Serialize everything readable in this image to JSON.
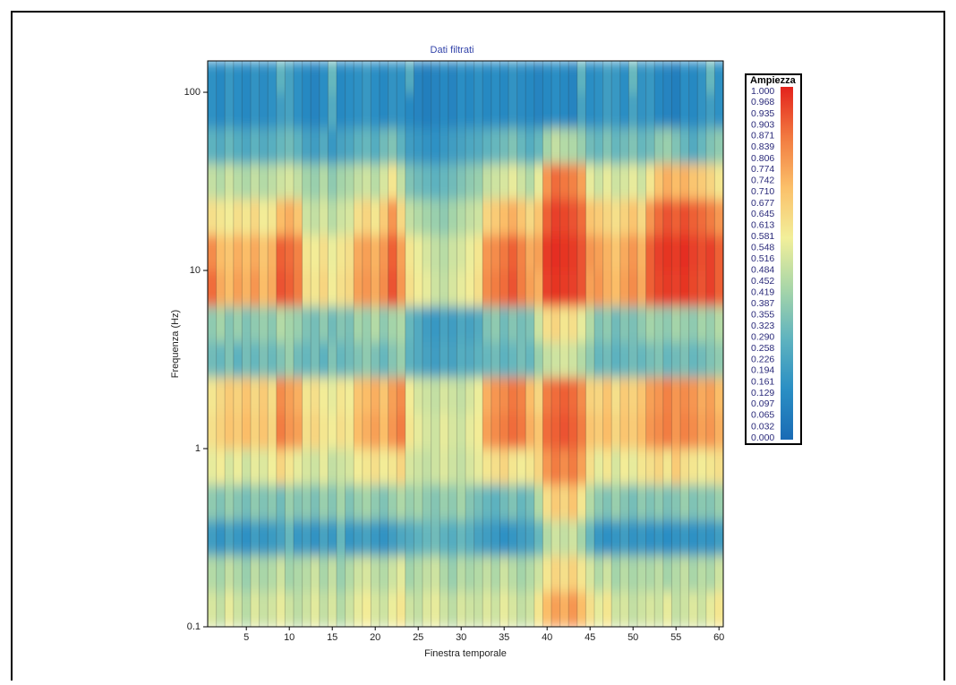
{
  "chart_data": {
    "type": "heatmap",
    "title": "Dati filtrati",
    "x_label": "Finestra temporale",
    "y_label": "Frequenza (Hz)",
    "colorbar_title": "Ampiezza",
    "xlim": [
      0.5,
      60.5
    ],
    "ylim": [
      0.1,
      150
    ],
    "ylog": true,
    "xticks": [
      5,
      10,
      15,
      20,
      25,
      30,
      35,
      40,
      45,
      50,
      55,
      60
    ],
    "yticks": [
      0.1,
      1,
      10,
      100
    ],
    "zlim": [
      0,
      1
    ],
    "colorscale": [
      "#1a6bb5",
      "#2a8fc4",
      "#5fb3bf",
      "#a8d6a8",
      "#f2ef9a",
      "#fbc06a",
      "#f27a40",
      "#e3221c"
    ],
    "colorbar_ticks": [
      {
        "value": 1,
        "label": "1.000"
      },
      0.968,
      0.935,
      0.903,
      0.871,
      0.839,
      0.806,
      0.774,
      0.742,
      {
        "value": 0.71,
        "label": "0.710"
      },
      0.677,
      0.645,
      0.613,
      0.581,
      0.548,
      0.516,
      0.484,
      0.452,
      0.419,
      0.387,
      0.355,
      0.323,
      {
        "value": 0.29,
        "label": "0.290"
      },
      0.258,
      0.226,
      0.194,
      0.161,
      0.129,
      0.097,
      0.065,
      0.032,
      {
        "value": 0,
        "label": "0.000"
      }
    ],
    "x": [
      1,
      2,
      3,
      4,
      5,
      6,
      7,
      8,
      9,
      10,
      11,
      12,
      13,
      14,
      15,
      16,
      17,
      18,
      19,
      20,
      21,
      22,
      23,
      24,
      25,
      26,
      27,
      28,
      29,
      30,
      31,
      32,
      33,
      34,
      35,
      36,
      37,
      38,
      39,
      40,
      41,
      42,
      43,
      44,
      45,
      46,
      47,
      48,
      49,
      50,
      51,
      52,
      53,
      54,
      55,
      56,
      57,
      58,
      59,
      60
    ],
    "y_bins": [
      0.1,
      0.158,
      0.251,
      0.398,
      0.631,
      1,
      1.585,
      2.512,
      3.981,
      6.31,
      10,
      15.85,
      25.12,
      39.81,
      63.1,
      100,
      150
    ],
    "z": [
      [
        0.52,
        0.48,
        0.55,
        0.5,
        0.46,
        0.53,
        0.49,
        0.51,
        0.55,
        0.5,
        0.47,
        0.5,
        0.54,
        0.48,
        0.52,
        0.45,
        0.5,
        0.55,
        0.58,
        0.52,
        0.5,
        0.56,
        0.6,
        0.5,
        0.48,
        0.53,
        0.55,
        0.5,
        0.47,
        0.52,
        0.5,
        0.49,
        0.53,
        0.5,
        0.55,
        0.52,
        0.48,
        0.5,
        0.6,
        0.72,
        0.78,
        0.75,
        0.8,
        0.72,
        0.62,
        0.55,
        0.6,
        0.5,
        0.52,
        0.48,
        0.5,
        0.52,
        0.5,
        0.55,
        0.48,
        0.5,
        0.53,
        0.5,
        0.55,
        0.6
      ],
      [
        0.45,
        0.42,
        0.48,
        0.44,
        0.4,
        0.47,
        0.43,
        0.45,
        0.5,
        0.42,
        0.44,
        0.46,
        0.5,
        0.43,
        0.48,
        0.4,
        0.45,
        0.5,
        0.52,
        0.47,
        0.45,
        0.5,
        0.54,
        0.42,
        0.45,
        0.48,
        0.5,
        0.44,
        0.4,
        0.46,
        0.43,
        0.45,
        0.48,
        0.44,
        0.5,
        0.46,
        0.42,
        0.45,
        0.5,
        0.6,
        0.65,
        0.62,
        0.66,
        0.6,
        0.52,
        0.45,
        0.5,
        0.42,
        0.46,
        0.43,
        0.45,
        0.44,
        0.47,
        0.42,
        0.45,
        0.48,
        0.43,
        0.46,
        0.44,
        0.5
      ],
      [
        0.2,
        0.16,
        0.22,
        0.18,
        0.15,
        0.2,
        0.17,
        0.19,
        0.22,
        0.3,
        0.18,
        0.2,
        0.16,
        0.22,
        0.18,
        0.3,
        0.17,
        0.2,
        0.22,
        0.18,
        0.16,
        0.2,
        0.24,
        0.25,
        0.28,
        0.3,
        0.32,
        0.28,
        0.26,
        0.3,
        0.27,
        0.22,
        0.2,
        0.18,
        0.15,
        0.17,
        0.2,
        0.22,
        0.3,
        0.45,
        0.5,
        0.48,
        0.5,
        0.42,
        0.3,
        0.18,
        0.15,
        0.17,
        0.2,
        0.16,
        0.18,
        0.15,
        0.17,
        0.14,
        0.16,
        0.18,
        0.15,
        0.17,
        0.16,
        0.2
      ],
      [
        0.38,
        0.35,
        0.4,
        0.36,
        0.33,
        0.38,
        0.35,
        0.37,
        0.32,
        0.4,
        0.36,
        0.38,
        0.34,
        0.4,
        0.36,
        0.42,
        0.35,
        0.4,
        0.42,
        0.38,
        0.35,
        0.4,
        0.44,
        0.4,
        0.42,
        0.38,
        0.36,
        0.4,
        0.38,
        0.42,
        0.36,
        0.33,
        0.3,
        0.28,
        0.32,
        0.35,
        0.3,
        0.33,
        0.45,
        0.62,
        0.68,
        0.65,
        0.7,
        0.6,
        0.45,
        0.38,
        0.35,
        0.4,
        0.36,
        0.33,
        0.38,
        0.35,
        0.38,
        0.34,
        0.36,
        0.4,
        0.35,
        0.37,
        0.36,
        0.4
      ],
      [
        0.55,
        0.58,
        0.52,
        0.56,
        0.5,
        0.55,
        0.53,
        0.57,
        0.65,
        0.6,
        0.55,
        0.52,
        0.5,
        0.55,
        0.48,
        0.5,
        0.52,
        0.58,
        0.6,
        0.62,
        0.58,
        0.6,
        0.65,
        0.52,
        0.5,
        0.48,
        0.5,
        0.53,
        0.5,
        0.48,
        0.52,
        0.55,
        0.6,
        0.62,
        0.65,
        0.6,
        0.58,
        0.6,
        0.65,
        0.8,
        0.85,
        0.82,
        0.85,
        0.78,
        0.62,
        0.55,
        0.6,
        0.52,
        0.58,
        0.55,
        0.6,
        0.62,
        0.65,
        0.6,
        0.68,
        0.62,
        0.6,
        0.58,
        0.6,
        0.62
      ],
      [
        0.62,
        0.66,
        0.7,
        0.68,
        0.72,
        0.66,
        0.7,
        0.65,
        0.85,
        0.8,
        0.78,
        0.62,
        0.65,
        0.6,
        0.58,
        0.62,
        0.6,
        0.72,
        0.75,
        0.78,
        0.72,
        0.8,
        0.85,
        0.6,
        0.55,
        0.52,
        0.5,
        0.55,
        0.52,
        0.5,
        0.55,
        0.58,
        0.78,
        0.82,
        0.85,
        0.88,
        0.86,
        0.75,
        0.7,
        0.88,
        0.9,
        0.92,
        0.9,
        0.85,
        0.7,
        0.68,
        0.72,
        0.65,
        0.7,
        0.68,
        0.72,
        0.8,
        0.82,
        0.85,
        0.8,
        0.84,
        0.82,
        0.78,
        0.8,
        0.75
      ],
      [
        0.6,
        0.64,
        0.68,
        0.66,
        0.7,
        0.64,
        0.68,
        0.63,
        0.82,
        0.78,
        0.75,
        0.6,
        0.62,
        0.58,
        0.55,
        0.6,
        0.58,
        0.7,
        0.72,
        0.75,
        0.7,
        0.78,
        0.82,
        0.58,
        0.52,
        0.5,
        0.48,
        0.52,
        0.5,
        0.48,
        0.52,
        0.56,
        0.75,
        0.8,
        0.82,
        0.86,
        0.84,
        0.72,
        0.65,
        0.85,
        0.88,
        0.9,
        0.88,
        0.82,
        0.66,
        0.65,
        0.7,
        0.62,
        0.68,
        0.66,
        0.7,
        0.78,
        0.8,
        0.84,
        0.8,
        0.82,
        0.8,
        0.76,
        0.78,
        0.72
      ],
      [
        0.32,
        0.3,
        0.35,
        0.28,
        0.33,
        0.3,
        0.34,
        0.31,
        0.35,
        0.4,
        0.32,
        0.3,
        0.33,
        0.28,
        0.35,
        0.3,
        0.32,
        0.35,
        0.38,
        0.34,
        0.3,
        0.36,
        0.4,
        0.28,
        0.25,
        0.22,
        0.2,
        0.24,
        0.22,
        0.26,
        0.25,
        0.28,
        0.3,
        0.32,
        0.28,
        0.3,
        0.33,
        0.3,
        0.4,
        0.48,
        0.5,
        0.52,
        0.5,
        0.45,
        0.38,
        0.3,
        0.32,
        0.28,
        0.3,
        0.32,
        0.3,
        0.33,
        0.35,
        0.3,
        0.32,
        0.34,
        0.3,
        0.32,
        0.35,
        0.38
      ],
      [
        0.38,
        0.42,
        0.36,
        0.4,
        0.35,
        0.38,
        0.4,
        0.37,
        0.45,
        0.42,
        0.4,
        0.35,
        0.33,
        0.38,
        0.32,
        0.36,
        0.34,
        0.42,
        0.4,
        0.45,
        0.38,
        0.42,
        0.44,
        0.3,
        0.25,
        0.2,
        0.18,
        0.22,
        0.2,
        0.24,
        0.22,
        0.25,
        0.35,
        0.38,
        0.32,
        0.36,
        0.33,
        0.35,
        0.5,
        0.62,
        0.65,
        0.6,
        0.62,
        0.55,
        0.45,
        0.35,
        0.38,
        0.32,
        0.36,
        0.34,
        0.38,
        0.42,
        0.4,
        0.38,
        0.42,
        0.4,
        0.38,
        0.42,
        0.4,
        0.45
      ],
      [
        0.88,
        0.76,
        0.72,
        0.78,
        0.74,
        0.8,
        0.72,
        0.76,
        0.92,
        0.9,
        0.85,
        0.62,
        0.6,
        0.65,
        0.58,
        0.62,
        0.64,
        0.78,
        0.8,
        0.76,
        0.82,
        0.92,
        0.8,
        0.62,
        0.58,
        0.55,
        0.5,
        0.48,
        0.52,
        0.55,
        0.58,
        0.62,
        0.82,
        0.85,
        0.88,
        0.92,
        0.85,
        0.78,
        0.75,
        0.95,
        0.97,
        0.96,
        0.95,
        0.92,
        0.78,
        0.8,
        0.75,
        0.72,
        0.78,
        0.82,
        0.76,
        0.9,
        0.94,
        0.96,
        0.95,
        0.97,
        0.94,
        0.92,
        0.95,
        0.9
      ],
      [
        0.82,
        0.72,
        0.7,
        0.75,
        0.72,
        0.76,
        0.7,
        0.74,
        0.9,
        0.88,
        0.84,
        0.6,
        0.58,
        0.62,
        0.56,
        0.6,
        0.62,
        0.76,
        0.78,
        0.74,
        0.8,
        0.9,
        0.78,
        0.6,
        0.56,
        0.52,
        0.48,
        0.46,
        0.5,
        0.52,
        0.56,
        0.6,
        0.8,
        0.82,
        0.86,
        0.9,
        0.84,
        0.76,
        0.78,
        0.96,
        0.98,
        0.97,
        0.96,
        0.92,
        0.8,
        0.78,
        0.74,
        0.7,
        0.76,
        0.8,
        0.74,
        0.9,
        0.95,
        0.97,
        0.96,
        0.98,
        0.95,
        0.93,
        0.95,
        0.9
      ],
      [
        0.62,
        0.6,
        0.58,
        0.62,
        0.6,
        0.64,
        0.58,
        0.6,
        0.72,
        0.75,
        0.7,
        0.5,
        0.48,
        0.52,
        0.46,
        0.5,
        0.52,
        0.62,
        0.65,
        0.6,
        0.68,
        0.8,
        0.64,
        0.48,
        0.45,
        0.42,
        0.4,
        0.38,
        0.42,
        0.45,
        0.48,
        0.5,
        0.65,
        0.68,
        0.72,
        0.75,
        0.7,
        0.64,
        0.7,
        0.9,
        0.95,
        0.94,
        0.92,
        0.88,
        0.7,
        0.68,
        0.65,
        0.62,
        0.66,
        0.7,
        0.64,
        0.8,
        0.88,
        0.92,
        0.9,
        0.93,
        0.9,
        0.88,
        0.85,
        0.8
      ],
      [
        0.48,
        0.45,
        0.5,
        0.46,
        0.44,
        0.48,
        0.45,
        0.47,
        0.5,
        0.52,
        0.48,
        0.42,
        0.4,
        0.45,
        0.38,
        0.42,
        0.44,
        0.48,
        0.5,
        0.46,
        0.52,
        0.6,
        0.48,
        0.35,
        0.32,
        0.3,
        0.28,
        0.3,
        0.32,
        0.35,
        0.38,
        0.4,
        0.48,
        0.5,
        0.52,
        0.55,
        0.5,
        0.45,
        0.55,
        0.8,
        0.88,
        0.86,
        0.84,
        0.78,
        0.55,
        0.5,
        0.55,
        0.5,
        0.52,
        0.55,
        0.5,
        0.6,
        0.7,
        0.75,
        0.72,
        0.74,
        0.7,
        0.68,
        0.65,
        0.6
      ],
      [
        0.28,
        0.25,
        0.3,
        0.26,
        0.24,
        0.28,
        0.25,
        0.27,
        0.3,
        0.32,
        0.28,
        0.22,
        0.2,
        0.25,
        0.18,
        0.22,
        0.24,
        0.28,
        0.3,
        0.26,
        0.32,
        0.35,
        0.28,
        0.2,
        0.18,
        0.16,
        0.15,
        0.18,
        0.2,
        0.22,
        0.24,
        0.25,
        0.28,
        0.3,
        0.32,
        0.35,
        0.3,
        0.26,
        0.3,
        0.42,
        0.48,
        0.45,
        0.44,
        0.4,
        0.32,
        0.3,
        0.35,
        0.3,
        0.32,
        0.35,
        0.3,
        0.32,
        0.38,
        0.4,
        0.35,
        0.3,
        0.25,
        0.3,
        0.35,
        0.38
      ],
      [
        0.15,
        0.12,
        0.18,
        0.14,
        0.12,
        0.16,
        0.13,
        0.15,
        0.2,
        0.22,
        0.15,
        0.12,
        0.1,
        0.14,
        0.25,
        0.12,
        0.14,
        0.15,
        0.18,
        0.14,
        0.12,
        0.16,
        0.15,
        0.12,
        0.1,
        0.08,
        0.1,
        0.12,
        0.1,
        0.14,
        0.12,
        0.15,
        0.12,
        0.14,
        0.12,
        0.16,
        0.13,
        0.12,
        0.1,
        0.12,
        0.14,
        0.12,
        0.1,
        0.22,
        0.14,
        0.15,
        0.2,
        0.18,
        0.14,
        0.22,
        0.16,
        0.18,
        0.12,
        0.1,
        0.08,
        0.14,
        0.12,
        0.16,
        0.2,
        0.15
      ],
      [
        0.15,
        0.12,
        0.18,
        0.14,
        0.12,
        0.16,
        0.13,
        0.15,
        0.28,
        0.22,
        0.15,
        0.12,
        0.1,
        0.14,
        0.3,
        0.12,
        0.14,
        0.15,
        0.18,
        0.14,
        0.12,
        0.16,
        0.15,
        0.25,
        0.1,
        0.08,
        0.1,
        0.12,
        0.1,
        0.14,
        0.12,
        0.15,
        0.12,
        0.14,
        0.12,
        0.16,
        0.13,
        0.12,
        0.1,
        0.12,
        0.14,
        0.12,
        0.1,
        0.28,
        0.14,
        0.15,
        0.2,
        0.18,
        0.14,
        0.3,
        0.16,
        0.18,
        0.12,
        0.1,
        0.08,
        0.14,
        0.12,
        0.16,
        0.3,
        0.15
      ]
    ]
  }
}
